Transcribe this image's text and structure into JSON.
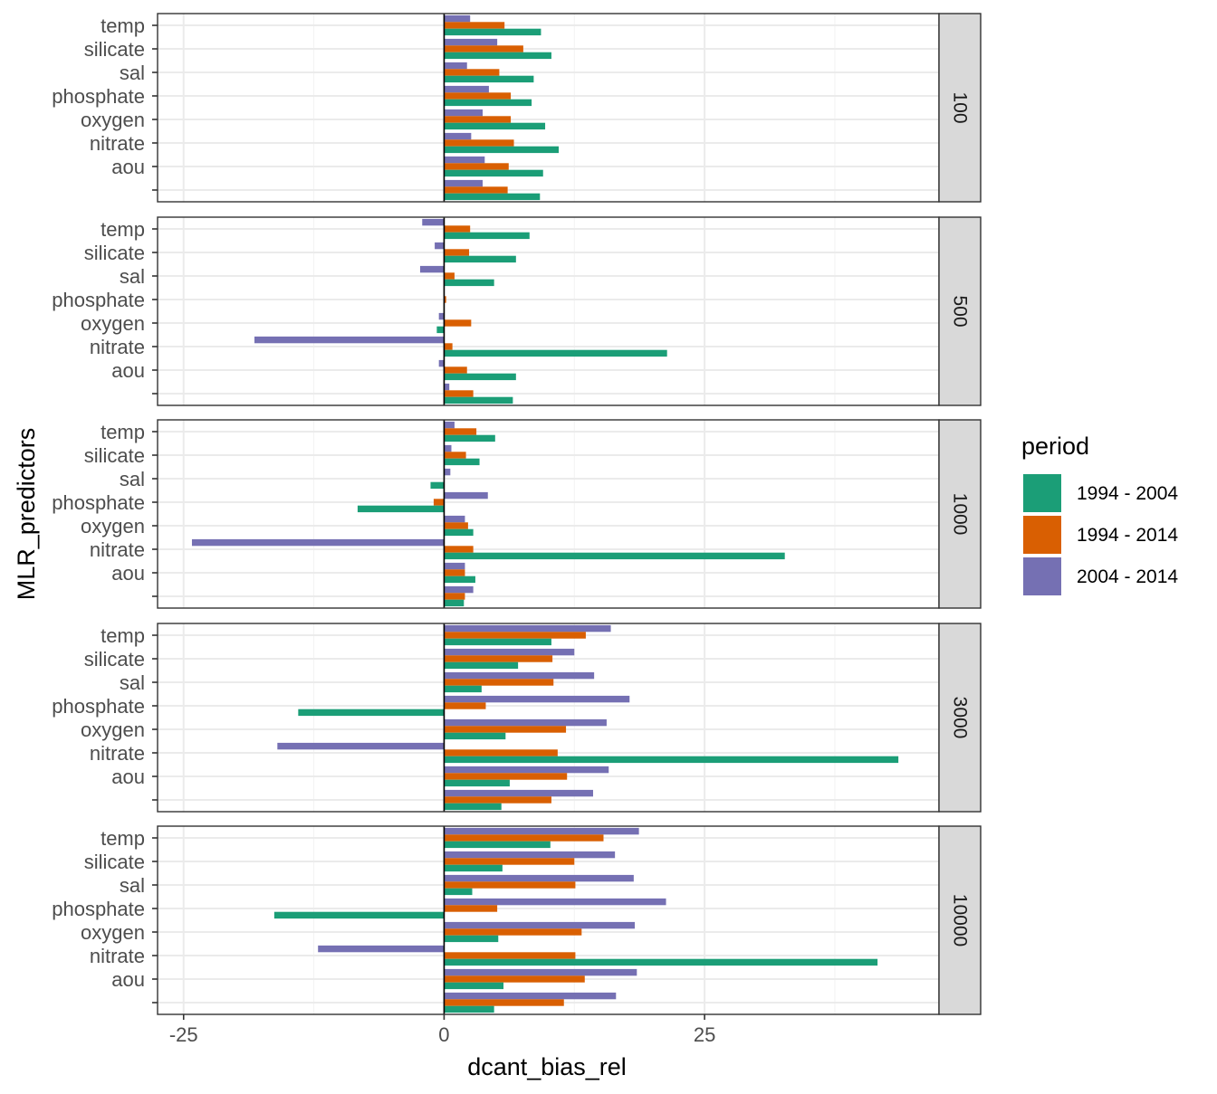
{
  "chart_data": {
    "type": "bar",
    "orientation": "horizontal",
    "facet_by": "depth",
    "xlabel": "dcant_bias_rel",
    "ylabel": "MLR_predictors",
    "xlim": [
      -27.5,
      47.5
    ],
    "x_ticks": [
      -25,
      0,
      25
    ],
    "x_tick_labels": [
      "-25",
      "0",
      "25"
    ],
    "grid": true,
    "legend": {
      "title": "period",
      "position": "right"
    },
    "categories": [
      "temp",
      "silicate",
      "sal",
      "phosphate",
      "oxygen",
      "nitrate",
      "aou",
      ""
    ],
    "series": [
      {
        "name": "1994 - 2004",
        "color": "#1B9E77"
      },
      {
        "name": "1994 - 2014",
        "color": "#D95F02"
      },
      {
        "name": "2004 - 2014",
        "color": "#7570B3"
      }
    ],
    "panels": [
      {
        "label": "100",
        "values": [
          [
            9.3,
            5.8,
            2.5
          ],
          [
            10.3,
            7.6,
            5.1
          ],
          [
            8.6,
            5.3,
            2.2
          ],
          [
            8.4,
            6.4,
            4.3
          ],
          [
            9.7,
            6.4,
            3.7
          ],
          [
            11.0,
            6.7,
            2.6
          ],
          [
            9.5,
            6.2,
            3.9
          ],
          [
            9.2,
            6.1,
            3.7
          ]
        ]
      },
      {
        "label": "500",
        "values": [
          [
            8.2,
            2.5,
            -2.1
          ],
          [
            6.9,
            2.4,
            -0.9
          ],
          [
            4.8,
            1.0,
            -2.3
          ],
          [
            0.0,
            0.2,
            0.0
          ],
          [
            -0.7,
            2.6,
            -0.5
          ],
          [
            21.4,
            0.8,
            -18.2
          ],
          [
            6.9,
            2.2,
            -0.5
          ],
          [
            6.6,
            2.8,
            0.5
          ]
        ]
      },
      {
        "label": "1000",
        "values": [
          [
            4.9,
            3.1,
            1.0
          ],
          [
            3.4,
            2.1,
            0.7
          ],
          [
            -1.3,
            0.0,
            0.6
          ],
          [
            -8.3,
            -1.0,
            4.2
          ],
          [
            2.8,
            2.3,
            2.0
          ],
          [
            32.7,
            2.8,
            -24.2
          ],
          [
            3.0,
            2.0,
            2.0
          ],
          [
            1.9,
            2.0,
            2.8
          ]
        ]
      },
      {
        "label": "3000",
        "values": [
          [
            10.3,
            13.6,
            16.0
          ],
          [
            7.1,
            10.4,
            12.5
          ],
          [
            3.6,
            10.5,
            14.4
          ],
          [
            -14.0,
            4.0,
            17.8
          ],
          [
            5.9,
            11.7,
            15.6
          ],
          [
            43.6,
            10.9,
            -16.0
          ],
          [
            6.3,
            11.8,
            15.8
          ],
          [
            5.5,
            10.3,
            14.3
          ]
        ]
      },
      {
        "label": "10000",
        "values": [
          [
            10.2,
            15.3,
            18.7
          ],
          [
            5.6,
            12.5,
            16.4
          ],
          [
            2.7,
            12.6,
            18.2
          ],
          [
            -16.3,
            5.1,
            21.3
          ],
          [
            5.2,
            13.2,
            18.3
          ],
          [
            41.6,
            12.6,
            -12.1
          ],
          [
            5.7,
            13.5,
            18.5
          ],
          [
            4.8,
            11.5,
            16.5
          ]
        ]
      }
    ]
  }
}
